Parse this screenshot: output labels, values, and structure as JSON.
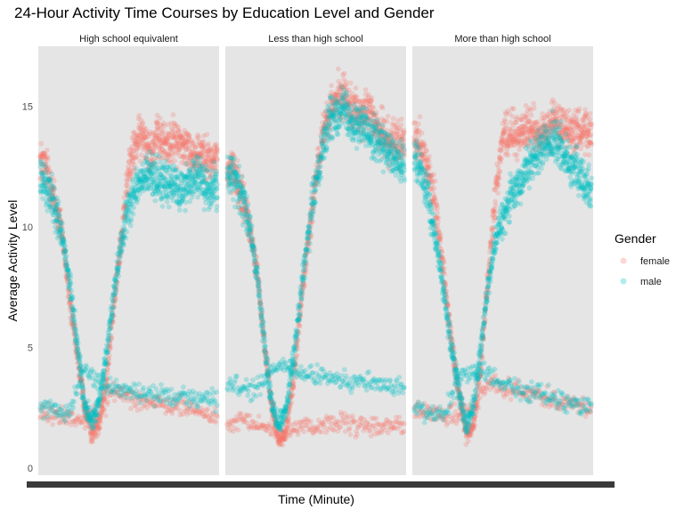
{
  "chart_data": {
    "type": "scatter",
    "title": "24-Hour Activity Time Courses by Education Level and Gender",
    "xlabel": "Time (Minute)",
    "ylabel": "Average Activity Level",
    "y_ticks": [
      0,
      5,
      10,
      15
    ],
    "ylim": [
      -0.3,
      17.5
    ],
    "xlim": [
      0,
      1440
    ],
    "grid": false,
    "legend": {
      "title": "Gender",
      "position": "right",
      "entries": [
        {
          "name": "female",
          "color": "#F8766D"
        },
        {
          "name": "male",
          "color": "#00BFC4"
        }
      ]
    },
    "point_alpha": 0.25,
    "facets": [
      {
        "label": "High school equivalent",
        "series": [
          {
            "name": "female",
            "color": "#F8766D",
            "profile_x": [
              0,
              60,
              120,
              180,
              240,
              300,
              360,
              420,
              480,
              540,
              600,
              660,
              720,
              780,
              840,
              900,
              960,
              1020,
              1080,
              1140,
              1200,
              1260,
              1320,
              1380,
              1440
            ],
            "profile_y": [
              12.8,
              12.3,
              11.0,
              9.7,
              6.9,
              4.7,
              2.6,
              1.4,
              1.9,
              3.8,
              6.8,
              9.6,
              12.3,
              13.5,
              13.8,
              13.2,
              13.7,
              13.4,
              13.6,
              13.5,
              13.2,
              13.0,
              13.2,
              12.7,
              12.9
            ],
            "branch_x": [
              0,
              120,
              240,
              360,
              480,
              600,
              720,
              840,
              960,
              1080,
              1200,
              1320,
              1440
            ],
            "branch_y": [
              2.3,
              2.2,
              2.1,
              2.0,
              2.3,
              3.2,
              3.0,
              2.8,
              2.6,
              2.6,
              2.5,
              2.3,
              2.1
            ]
          },
          {
            "name": "male",
            "color": "#00BFC4",
            "profile_x": [
              0,
              60,
              120,
              180,
              240,
              300,
              360,
              420,
              480,
              540,
              600,
              660,
              720,
              780,
              840,
              900,
              960,
              1020,
              1080,
              1140,
              1200,
              1260,
              1320,
              1380,
              1440
            ],
            "profile_y": [
              12.0,
              11.6,
              10.8,
              9.6,
              7.6,
              5.2,
              2.6,
              1.9,
              2.7,
              4.8,
              7.3,
              9.4,
              10.9,
              11.6,
              12.0,
              12.2,
              12.0,
              11.7,
              11.8,
              11.5,
              11.8,
              12.2,
              11.8,
              11.5,
              11.8
            ],
            "branch_x": [
              0,
              120,
              240,
              360,
              480,
              600,
              720,
              840,
              960,
              1080,
              1200,
              1320,
              1440
            ],
            "branch_y": [
              2.5,
              2.4,
              2.4,
              4.2,
              3.6,
              3.3,
              3.2,
              3.1,
              3.0,
              3.0,
              3.0,
              2.9,
              2.8
            ]
          }
        ]
      },
      {
        "label": "Less than high school",
        "series": [
          {
            "name": "female",
            "color": "#F8766D",
            "profile_x": [
              0,
              60,
              120,
              180,
              240,
              300,
              360,
              420,
              480,
              540,
              600,
              660,
              720,
              780,
              840,
              900,
              960,
              1020,
              1080,
              1140,
              1200,
              1260,
              1320,
              1380,
              1440
            ],
            "profile_y": [
              12.5,
              12.1,
              11.2,
              10.1,
              8.3,
              5.2,
              2.6,
              1.1,
              1.6,
              3.6,
              6.8,
              9.6,
              12.1,
              13.8,
              14.8,
              15.3,
              15.5,
              15.0,
              14.6,
              14.8,
              14.3,
              13.9,
              13.6,
              13.5,
              13.4
            ],
            "branch_x": [
              0,
              120,
              240,
              360,
              480,
              600,
              720,
              840,
              960,
              1080,
              1200,
              1320,
              1440
            ],
            "branch_y": [
              1.7,
              1.9,
              1.8,
              1.6,
              1.4,
              1.8,
              1.7,
              1.9,
              1.8,
              1.7,
              1.7,
              1.8,
              1.8
            ]
          },
          {
            "name": "male",
            "color": "#00BFC4",
            "profile_x": [
              0,
              60,
              120,
              180,
              240,
              300,
              360,
              420,
              480,
              540,
              600,
              660,
              720,
              780,
              840,
              900,
              960,
              1020,
              1080,
              1140,
              1200,
              1260,
              1320,
              1380,
              1440
            ],
            "profile_y": [
              12.2,
              12.0,
              11.3,
              10.1,
              8.1,
              5.3,
              2.7,
              1.8,
              2.5,
              4.6,
              7.3,
              9.7,
              11.9,
              13.5,
              14.5,
              14.9,
              14.9,
              14.4,
              14.3,
              14.0,
              13.8,
              13.4,
              13.0,
              12.7,
              12.5
            ],
            "branch_x": [
              0,
              120,
              240,
              360,
              480,
              600,
              720,
              840,
              960,
              1080,
              1200,
              1320,
              1440
            ],
            "branch_y": [
              3.4,
              3.3,
              3.2,
              4.0,
              4.3,
              3.9,
              3.8,
              3.7,
              3.6,
              3.6,
              3.5,
              3.4,
              3.3
            ]
          }
        ]
      },
      {
        "label": "More than high school",
        "series": [
          {
            "name": "female",
            "color": "#F8766D",
            "profile_x": [
              0,
              60,
              120,
              180,
              240,
              300,
              360,
              420,
              480,
              540,
              600,
              660,
              720,
              780,
              840,
              900,
              960,
              1020,
              1080,
              1140,
              1200,
              1260,
              1320,
              1380,
              1440
            ],
            "profile_y": [
              13.6,
              13.4,
              12.3,
              10.6,
              8.1,
              5.4,
              3.2,
              1.5,
              1.7,
              4.2,
              8.0,
              11.4,
              13.8,
              13.9,
              13.8,
              14.0,
              14.0,
              13.8,
              14.0,
              14.4,
              14.2,
              14.1,
              14.0,
              13.9,
              13.9
            ],
            "branch_x": [
              0,
              120,
              240,
              360,
              480,
              600,
              720,
              840,
              960,
              1080,
              1200,
              1320,
              1440
            ],
            "branch_y": [
              2.4,
              2.3,
              2.2,
              2.1,
              2.4,
              3.6,
              3.4,
              3.3,
              3.1,
              2.9,
              2.8,
              2.6,
              2.5
            ]
          },
          {
            "name": "male",
            "color": "#00BFC4",
            "profile_x": [
              0,
              60,
              120,
              180,
              240,
              300,
              360,
              420,
              480,
              540,
              600,
              660,
              720,
              780,
              840,
              900,
              960,
              1020,
              1080,
              1140,
              1200,
              1260,
              1320,
              1380,
              1440
            ],
            "profile_y": [
              12.8,
              12.3,
              11.0,
              9.3,
              7.3,
              5.1,
              3.3,
              1.7,
              2.5,
              4.9,
              7.7,
              9.4,
              10.5,
              11.2,
              11.5,
              12.2,
              12.7,
              13.2,
              13.5,
              13.6,
              13.2,
              12.7,
              12.3,
              11.8,
              11.6
            ],
            "branch_x": [
              0,
              120,
              240,
              360,
              480,
              600,
              720,
              840,
              960,
              1080,
              1200,
              1320,
              1440
            ],
            "branch_y": [
              2.5,
              2.3,
              2.2,
              3.8,
              4.1,
              3.9,
              3.5,
              3.3,
              3.1,
              3.0,
              2.8,
              2.6,
              2.6
            ]
          }
        ]
      }
    ]
  }
}
